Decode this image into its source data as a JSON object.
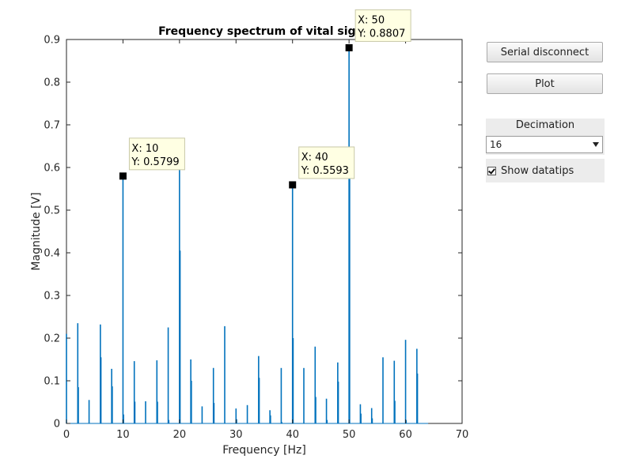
{
  "chart_data": {
    "type": "bar",
    "title": "Frequency spectrum of vital signs",
    "xlabel": "Frequency [Hz]",
    "ylabel": "Magnitude [V]",
    "xlim": [
      0,
      70
    ],
    "ylim": [
      0,
      0.9
    ],
    "xticks": [
      "0",
      "10",
      "20",
      "30",
      "40",
      "50",
      "60",
      "70"
    ],
    "yticks": [
      "0",
      "0.1",
      "0.2",
      "0.3",
      "0.4",
      "0.5",
      "0.6",
      "0.7",
      "0.8",
      "0.9"
    ],
    "grid": false,
    "color": "#0072bd",
    "series": [
      {
        "x": [
          0,
          2,
          2.1,
          4,
          6,
          6.1,
          8,
          8.1,
          10,
          10.1,
          12,
          12.1,
          14,
          16,
          16.1,
          18,
          18.1,
          20,
          20.1,
          22,
          22.1,
          24,
          26,
          26.1,
          28,
          30,
          30.1,
          32,
          34,
          34.1,
          36,
          36.1,
          38,
          38.1,
          40,
          40.1,
          42,
          44,
          44.1,
          46,
          46.1,
          48,
          48.1,
          50,
          50.1,
          52,
          52.1,
          54,
          54.1,
          56,
          58,
          58.1,
          60,
          60.1,
          62,
          62.1
        ],
        "y": [
          0.21,
          0.235,
          0.085,
          0.055,
          0.232,
          0.155,
          0.128,
          0.087,
          0.5799,
          0.021,
          0.146,
          0.051,
          0.052,
          0.148,
          0.051,
          0.225,
          0.008,
          0.6,
          0.405,
          0.15,
          0.1,
          0.04,
          0.13,
          0.048,
          0.228,
          0.035,
          0.01,
          0.043,
          0.158,
          0.107,
          0.031,
          0.019,
          0.13,
          0.003,
          0.5593,
          0.2,
          0.13,
          0.18,
          0.062,
          0.058,
          0.008,
          0.143,
          0.098,
          0.8807,
          0.58,
          0.045,
          0.023,
          0.036,
          0.012,
          0.155,
          0.147,
          0.053,
          0.196,
          0.008,
          0.175,
          0.117
        ]
      }
    ],
    "datatips": [
      {
        "x": 10,
        "y": 0.5799,
        "label_x": "X: 10",
        "label_y": "Y: 0.5799"
      },
      {
        "x": 40,
        "y": 0.5593,
        "label_x": "X: 40",
        "label_y": "Y: 0.5593"
      },
      {
        "x": 50,
        "y": 0.8807,
        "label_x": "X: 50",
        "label_y": "Y: 0.8807"
      }
    ]
  },
  "controls": {
    "serial_button": "Serial disconnect",
    "plot_button": "Plot",
    "decimation_label": "Decimation",
    "decimation_value": "16",
    "datatips_label": "Show datatips",
    "datatips_checked": true
  }
}
